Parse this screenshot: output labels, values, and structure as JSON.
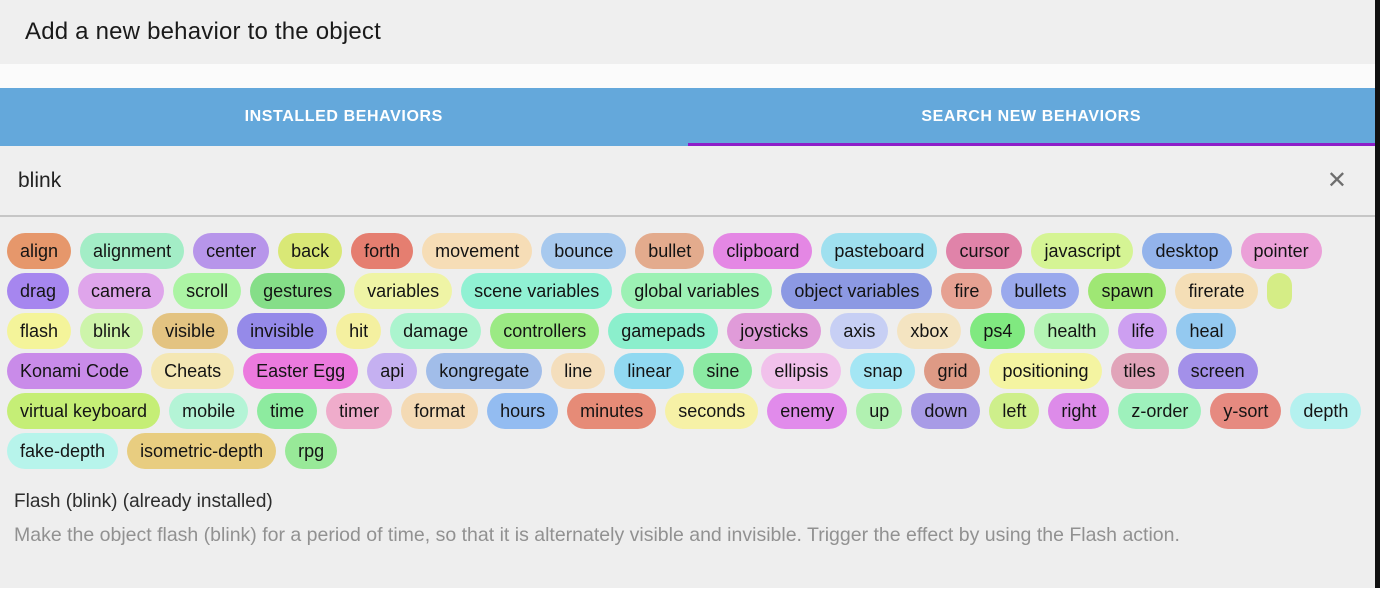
{
  "title": "Add a new behavior to the object",
  "tabs": [
    {
      "label": "INSTALLED BEHAVIORS",
      "active": false
    },
    {
      "label": "SEARCH NEW BEHAVIORS",
      "active": true
    }
  ],
  "search": {
    "value": "blink",
    "clear_icon_glyph": "✕"
  },
  "tag_rows": [
    [
      {
        "label": "align",
        "color": "#E6976B"
      },
      {
        "label": "alignment",
        "color": "#A3EDC6"
      },
      {
        "label": "center",
        "color": "#B795EA"
      },
      {
        "label": "back",
        "color": "#D9E876"
      },
      {
        "label": "forth",
        "color": "#E57E70"
      },
      {
        "label": "movement",
        "color": "#F6DDB6"
      },
      {
        "label": "bounce",
        "color": "#A7C9EE"
      },
      {
        "label": "bullet",
        "color": "#E3AB8D"
      },
      {
        "label": "clipboard",
        "color": "#E487E4"
      },
      {
        "label": "pasteboard",
        "color": "#9FE0EF"
      },
      {
        "label": "cursor",
        "color": "#E083A9"
      },
      {
        "label": "javascript",
        "color": "#D5F494"
      },
      {
        "label": "desktop",
        "color": "#93B3EB"
      },
      {
        "label": "pointer",
        "color": "#EBA0D8"
      }
    ],
    [
      {
        "label": "drag",
        "color": "#A686EF"
      },
      {
        "label": "camera",
        "color": "#DFA5EB"
      },
      {
        "label": "scroll",
        "color": "#ACF4A4"
      },
      {
        "label": "gestures",
        "color": "#85DE88"
      },
      {
        "label": "variables",
        "color": "#EFF4A5"
      },
      {
        "label": "scene variables",
        "color": "#90F1D3"
      },
      {
        "label": "global variables",
        "color": "#9CF1B4"
      },
      {
        "label": "object variables",
        "color": "#8C99E3"
      },
      {
        "label": "fire",
        "color": "#E6A192"
      },
      {
        "label": "bullets",
        "color": "#9AA9ED"
      },
      {
        "label": "spawn",
        "color": "#9FE774"
      },
      {
        "label": "firerate",
        "color": "#F4DEB6"
      },
      {
        "label": "",
        "color": "#D5ED86",
        "clipped": true
      }
    ],
    [
      {
        "label": "flash",
        "color": "#F4F49A"
      },
      {
        "label": "blink",
        "color": "#CDF4AA"
      },
      {
        "label": "visible",
        "color": "#E3C381"
      },
      {
        "label": "invisible",
        "color": "#958AE9"
      },
      {
        "label": "hit",
        "color": "#F4F0A0"
      },
      {
        "label": "damage",
        "color": "#ABF4CE"
      },
      {
        "label": "controllers",
        "color": "#9BEA84"
      },
      {
        "label": "gamepads",
        "color": "#8BEFCC"
      },
      {
        "label": "joysticks",
        "color": "#E09BD9"
      },
      {
        "label": "axis",
        "color": "#C7CFF4"
      },
      {
        "label": "xbox",
        "color": "#F4E4C1"
      },
      {
        "label": "ps4",
        "color": "#80E980"
      },
      {
        "label": "health",
        "color": "#B4F4B4"
      },
      {
        "label": "life",
        "color": "#CD9FF1"
      },
      {
        "label": "heal",
        "color": "#94C9F0"
      }
    ],
    [
      {
        "label": "Konami Code",
        "color": "#C98BE9"
      },
      {
        "label": "Cheats",
        "color": "#F4E7B4"
      },
      {
        "label": "Easter Egg",
        "color": "#EB7ADE"
      },
      {
        "label": "api",
        "color": "#C5B0F1"
      },
      {
        "label": "kongregate",
        "color": "#A1BDE9"
      },
      {
        "label": "line",
        "color": "#F4DEBC"
      },
      {
        "label": "linear",
        "color": "#91D9F1"
      },
      {
        "label": "sine",
        "color": "#8BEAA3"
      },
      {
        "label": "ellipsis",
        "color": "#F1C1EB"
      },
      {
        "label": "snap",
        "color": "#A4E6F4"
      },
      {
        "label": "grid",
        "color": "#DE9A85"
      },
      {
        "label": "positioning",
        "color": "#F4F4A1"
      },
      {
        "label": "tiles",
        "color": "#E1A4B9"
      },
      {
        "label": "screen",
        "color": "#A390E9"
      }
    ],
    [
      {
        "label": "virtual keyboard",
        "color": "#C5EE76"
      },
      {
        "label": "mobile",
        "color": "#B4F4D6"
      },
      {
        "label": "time",
        "color": "#8DEB9F"
      },
      {
        "label": "timer",
        "color": "#EFACCB"
      },
      {
        "label": "format",
        "color": "#F4DAB4"
      },
      {
        "label": "hours",
        "color": "#93BCF1"
      },
      {
        "label": "minutes",
        "color": "#E68B77"
      },
      {
        "label": "seconds",
        "color": "#F6F1A6"
      },
      {
        "label": "enemy",
        "color": "#E18BEB"
      },
      {
        "label": "up",
        "color": "#B1F1B1"
      },
      {
        "label": "down",
        "color": "#A89BE6"
      },
      {
        "label": "left",
        "color": "#CEEF8B"
      },
      {
        "label": "right",
        "color": "#DD8BE9"
      },
      {
        "label": "z-order",
        "color": "#9EF1BC"
      },
      {
        "label": "y-sort",
        "color": "#E68A80"
      },
      {
        "label": "depth",
        "color": "#B4F1EF"
      }
    ],
    [
      {
        "label": "fake-depth",
        "color": "#B7F4EB"
      },
      {
        "label": "isometric-depth",
        "color": "#E8CD80"
      },
      {
        "label": "rpg",
        "color": "#98E998"
      }
    ]
  ],
  "result": {
    "title": "Flash (blink) (already installed)",
    "description": "Make the object flash (blink) for a period of time, so that it is alternately visible and invisible. Trigger the effect by using the Flash action."
  },
  "colors": {
    "tab_bar": "#64A8DB",
    "tab_indicator": "#8E1EC8",
    "dialog_bg": "#EEEEEE"
  }
}
